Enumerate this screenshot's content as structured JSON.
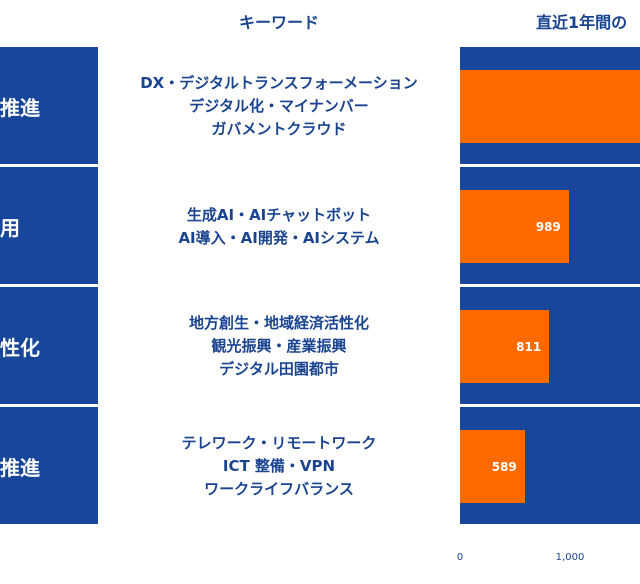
{
  "header": {
    "keyword_col": "キーワード",
    "count_col": "直近1年間の"
  },
  "chart_data": {
    "type": "bar",
    "orientation": "horizontal",
    "categories": [
      "推進",
      "用",
      "性化",
      "推進"
    ],
    "keywords": [
      [
        "DX・デジタルトランスフォーメーション",
        "デジタル化・マイナンバー",
        "ガバメントクラウド"
      ],
      [
        "生成AI・AIチャットボット",
        "AI導入・AI開発・AIシステム"
      ],
      [
        "地方創生・地域経済活性化",
        "観光振興・産業振興",
        "デジタル田園都市"
      ],
      [
        "テレワーク・リモートワーク",
        "ICT 整備・VPN",
        "ワークライフバランス"
      ]
    ],
    "values": [
      1650,
      989,
      811,
      589
    ],
    "value_labels": [
      "",
      "989",
      "811",
      "589"
    ],
    "x_ticks": [
      0,
      1000
    ],
    "x_tick_labels": [
      "0",
      "1,000"
    ],
    "xlim": [
      0,
      1650
    ]
  },
  "colors": {
    "band": "#17469a",
    "bar": "#ff6a00",
    "text": "#1a4490"
  }
}
